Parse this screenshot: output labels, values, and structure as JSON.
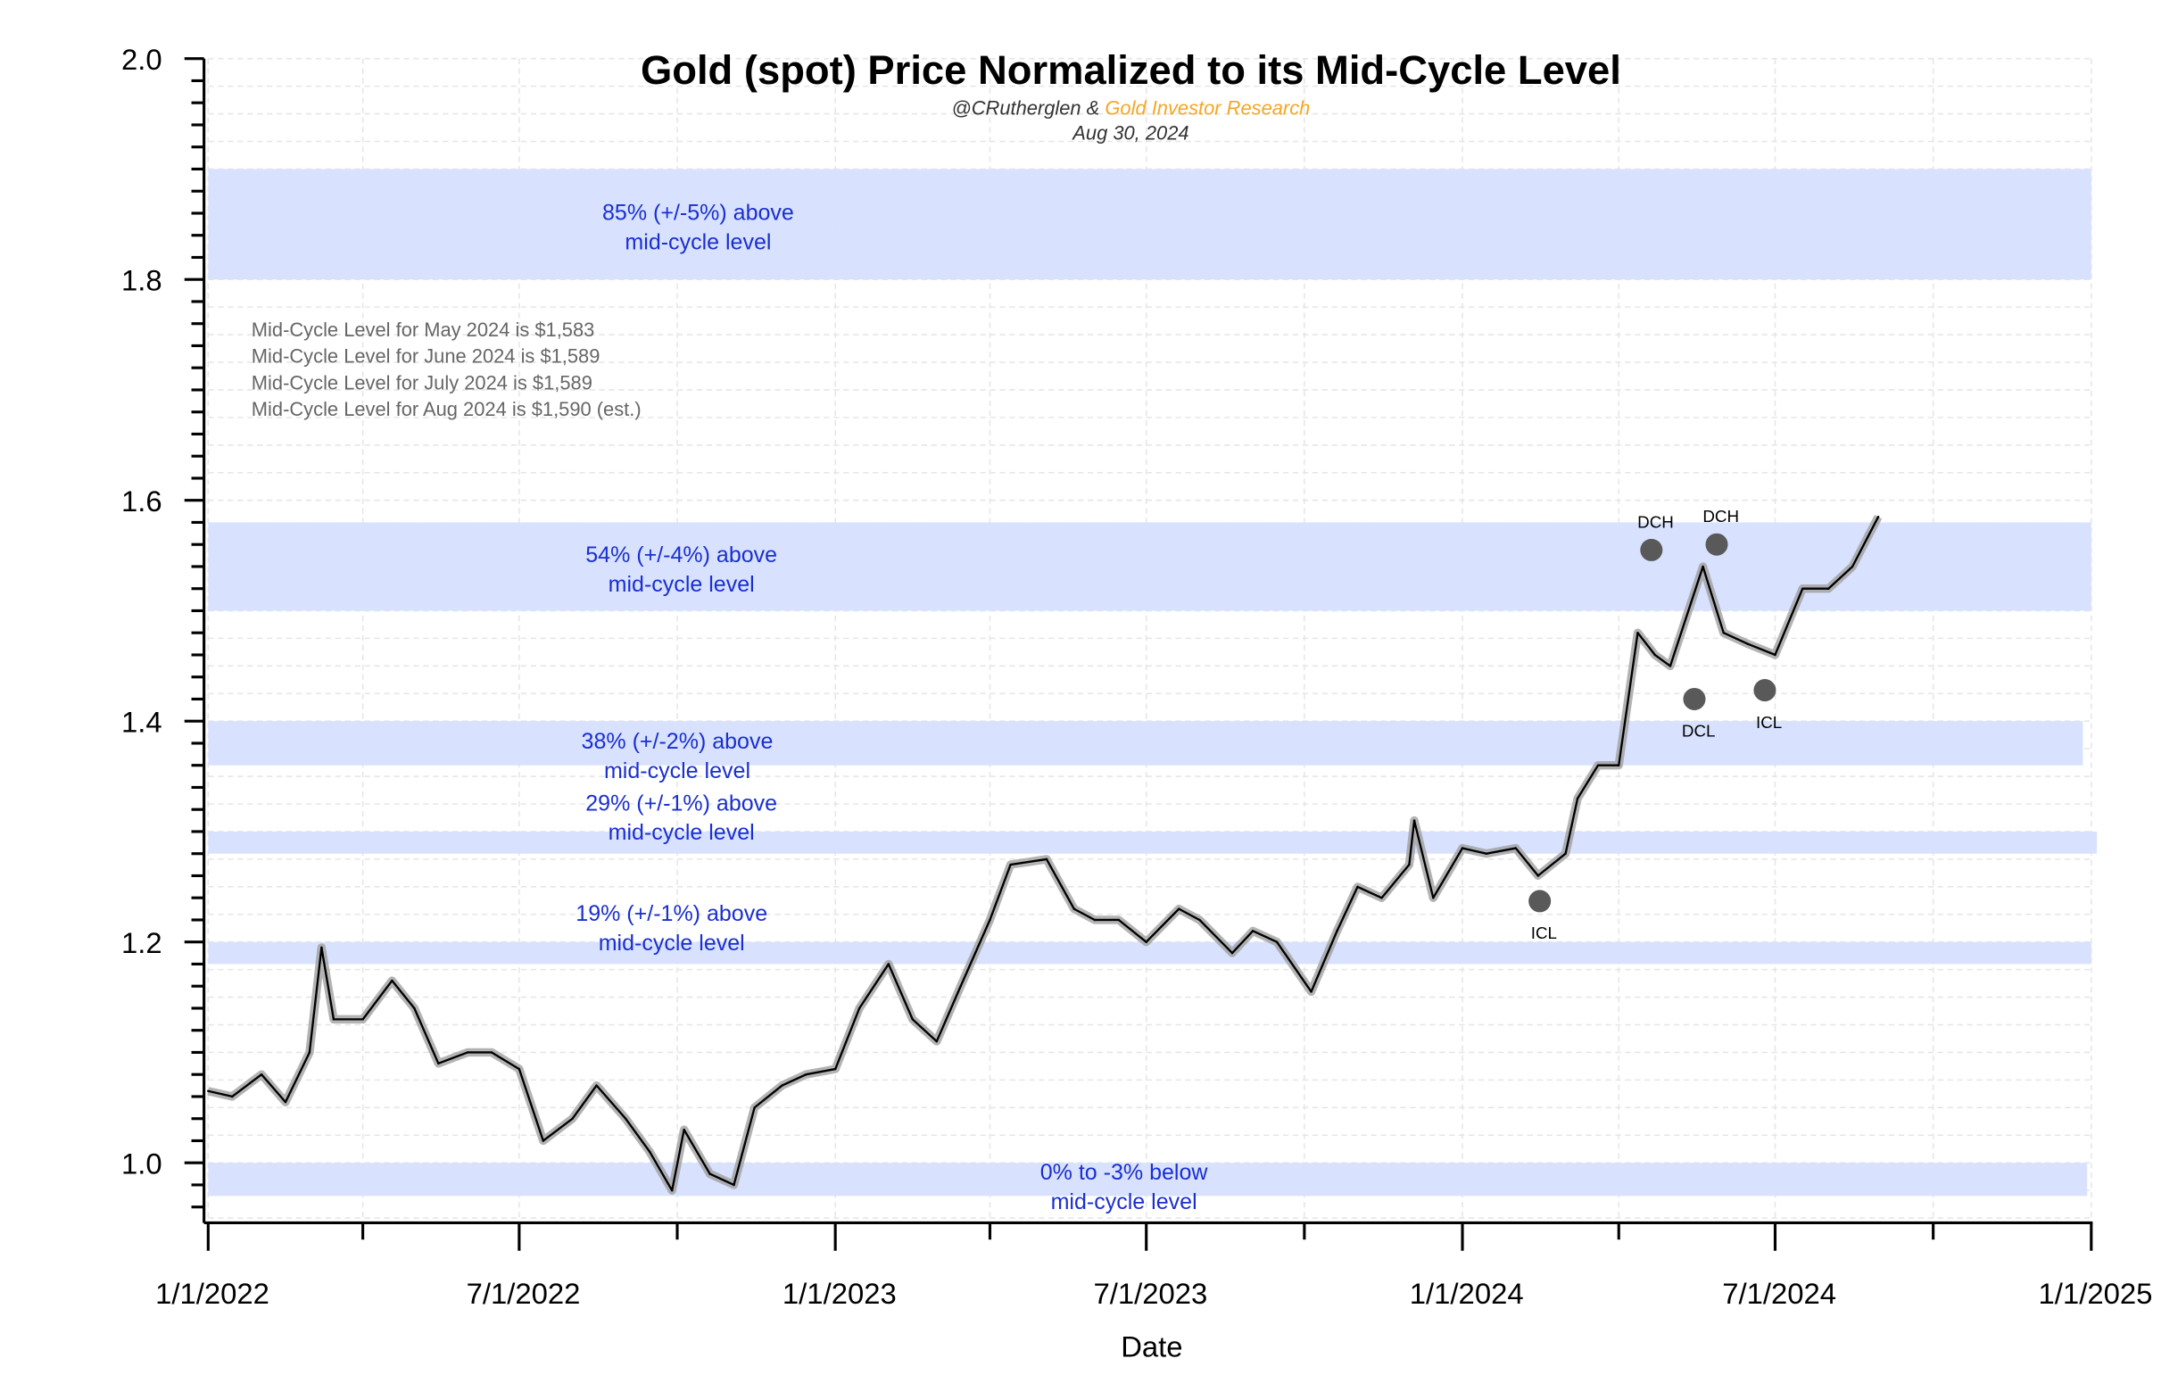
{
  "chart_data": {
    "type": "line",
    "title": "Gold (spot) Price Normalized to its Mid-Cycle Level",
    "subtitle_author": "@CRutherglen &",
    "subtitle_brand": "Gold Investor Research",
    "subtitle_date": "Aug 30, 2024",
    "xlabel": "Date",
    "ylabel": "",
    "xlim": [
      "2022-01-01",
      "2025-01-01"
    ],
    "ylim": [
      0.945,
      2.0
    ],
    "x_tick_labels": [
      "1/1/2022",
      "7/1/2022",
      "1/1/2023",
      "7/1/2023",
      "1/1/2024",
      "7/1/2024",
      "1/1/2025"
    ],
    "y_tick_labels": [
      "1.0",
      "1.2",
      "1.4",
      "1.6",
      "1.8",
      "2.0"
    ],
    "grid": true,
    "colors": {
      "line": "#000000",
      "shade": "#a0a0a0",
      "band": "#d6e0ff",
      "band_text": "#1a2fd0",
      "brand": "#f5a623",
      "note": "#666666",
      "marker": "#595959"
    },
    "series": [
      {
        "x": [
          "2022-01-01",
          "2022-01-15",
          "2022-02-01",
          "2022-02-15",
          "2022-03-01",
          "2022-03-08",
          "2022-03-15",
          "2022-04-01",
          "2022-04-18",
          "2022-05-01",
          "2022-05-15",
          "2022-06-01",
          "2022-06-15",
          "2022-07-01",
          "2022-07-15",
          "2022-08-01",
          "2022-08-15",
          "2022-09-01",
          "2022-09-15",
          "2022-09-28",
          "2022-10-05",
          "2022-10-20",
          "2022-11-03",
          "2022-11-15",
          "2022-12-01",
          "2022-12-15",
          "2023-01-01",
          "2023-01-15",
          "2023-02-01",
          "2023-02-15",
          "2023-03-01",
          "2023-03-15",
          "2023-04-01",
          "2023-04-13",
          "2023-05-04",
          "2023-05-20",
          "2023-06-01",
          "2023-06-15",
          "2023-07-01",
          "2023-07-20",
          "2023-08-01",
          "2023-08-20",
          "2023-09-01",
          "2023-09-15",
          "2023-10-05",
          "2023-10-20",
          "2023-11-01",
          "2023-11-15",
          "2023-12-01",
          "2023-12-04",
          "2023-12-15",
          "2024-01-01",
          "2024-01-15",
          "2024-02-01",
          "2024-02-14",
          "2024-03-01",
          "2024-03-08",
          "2024-03-20",
          "2024-04-01",
          "2024-04-12",
          "2024-04-22",
          "2024-05-01",
          "2024-05-20",
          "2024-06-01",
          "2024-06-15",
          "2024-07-01",
          "2024-07-17",
          "2024-08-01",
          "2024-08-15",
          "2024-08-30"
        ],
        "values": [
          1.065,
          1.06,
          1.08,
          1.055,
          1.1,
          1.195,
          1.13,
          1.13,
          1.165,
          1.14,
          1.09,
          1.1,
          1.1,
          1.085,
          1.02,
          1.04,
          1.07,
          1.04,
          1.01,
          0.975,
          1.03,
          0.99,
          0.98,
          1.05,
          1.07,
          1.08,
          1.085,
          1.14,
          1.18,
          1.13,
          1.11,
          1.16,
          1.22,
          1.27,
          1.275,
          1.23,
          1.22,
          1.22,
          1.2,
          1.23,
          1.22,
          1.19,
          1.21,
          1.2,
          1.155,
          1.21,
          1.25,
          1.24,
          1.27,
          1.31,
          1.24,
          1.285,
          1.28,
          1.285,
          1.26,
          1.28,
          1.33,
          1.36,
          1.36,
          1.48,
          1.46,
          1.45,
          1.54,
          1.48,
          1.47,
          1.46,
          1.52,
          1.52,
          1.54,
          1.585
        ]
      }
    ],
    "bands": [
      {
        "low": 1.8,
        "high": 1.9,
        "label_line1": "85% (+/-5%) above",
        "label_line2": "mid-cycle level"
      },
      {
        "low": 1.5,
        "high": 1.58,
        "label_line1": "54% (+/-4%) above",
        "label_line2": "mid-cycle level"
      },
      {
        "low": 1.36,
        "high": 1.4,
        "label_line1": "38% (+/-2%) above",
        "label_line2": "mid-cycle level"
      },
      {
        "low": 1.28,
        "high": 1.3,
        "label_line1": "29% (+/-1%) above",
        "label_line2": "mid-cycle level"
      },
      {
        "low": 1.18,
        "high": 1.2,
        "label_line1": "19% (+/-1%) above",
        "label_line2": "mid-cycle level"
      },
      {
        "low": 0.97,
        "high": 1.0,
        "label_line1": "0% to -3% below",
        "label_line2": "mid-cycle level"
      }
    ],
    "annotations": [
      {
        "label": "ICL",
        "x": "2024-02-15",
        "y": 1.237,
        "label_pos": "below"
      },
      {
        "label": "DCH",
        "x": "2024-04-20",
        "y": 1.555,
        "label_pos": "above"
      },
      {
        "label": "DCL",
        "x": "2024-05-15",
        "y": 1.42,
        "label_pos": "below"
      },
      {
        "label": "DCH",
        "x": "2024-05-28",
        "y": 1.56,
        "label_pos": "above"
      },
      {
        "label": "ICL",
        "x": "2024-06-25",
        "y": 1.428,
        "label_pos": "below"
      }
    ],
    "notes": [
      "Mid-Cycle Level for May 2024 is $1,583",
      "Mid-Cycle Level for June 2024 is $1,589",
      "Mid-Cycle Level for July 2024 is $1,589",
      "Mid-Cycle Level for Aug 2024 is $1,590 (est.)"
    ]
  }
}
